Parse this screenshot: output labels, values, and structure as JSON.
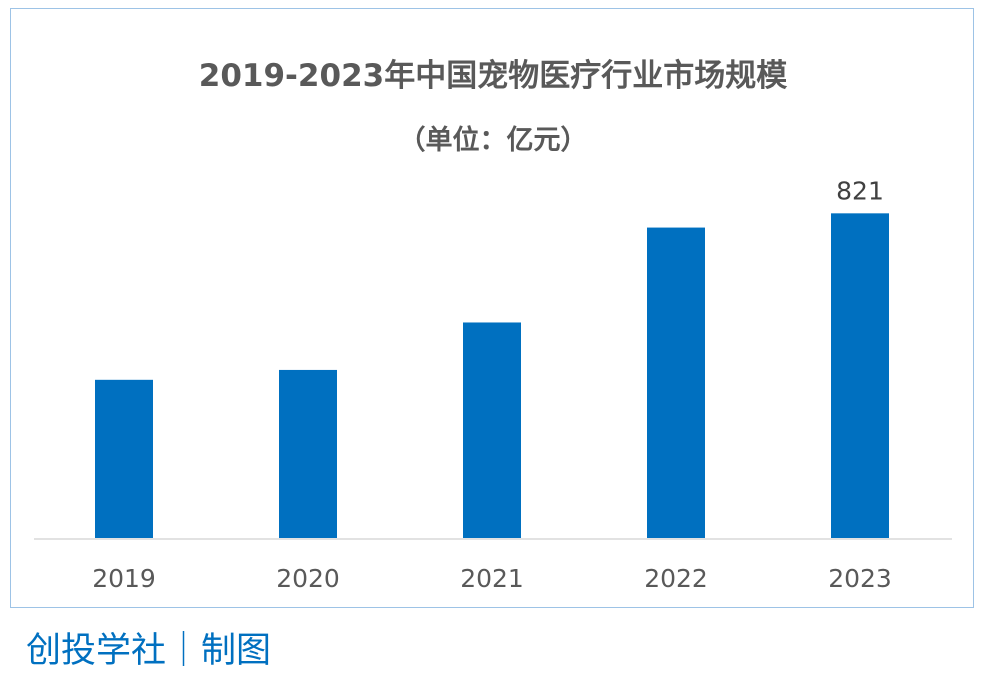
{
  "title": "2019-2023年中国宠物医疗行业市场规模",
  "subtitle": "（单位：亿元）",
  "credit": "创投学社｜制图",
  "colors": {
    "bar": "#0070c0",
    "border": "#9dc3e6",
    "axis": "#d9d9d9",
    "text": "#595959",
    "credit": "#0070c0"
  },
  "chart_data": {
    "type": "bar",
    "categories": [
      "2019",
      "2020",
      "2021",
      "2022",
      "2023"
    ],
    "values": [
      400,
      425,
      545,
      785,
      821
    ],
    "data_labels": [
      "",
      "",
      "",
      "",
      "821"
    ],
    "ylim": [
      0,
      880
    ],
    "grid": false,
    "legend": "none",
    "xlabel": "",
    "ylabel": ""
  }
}
